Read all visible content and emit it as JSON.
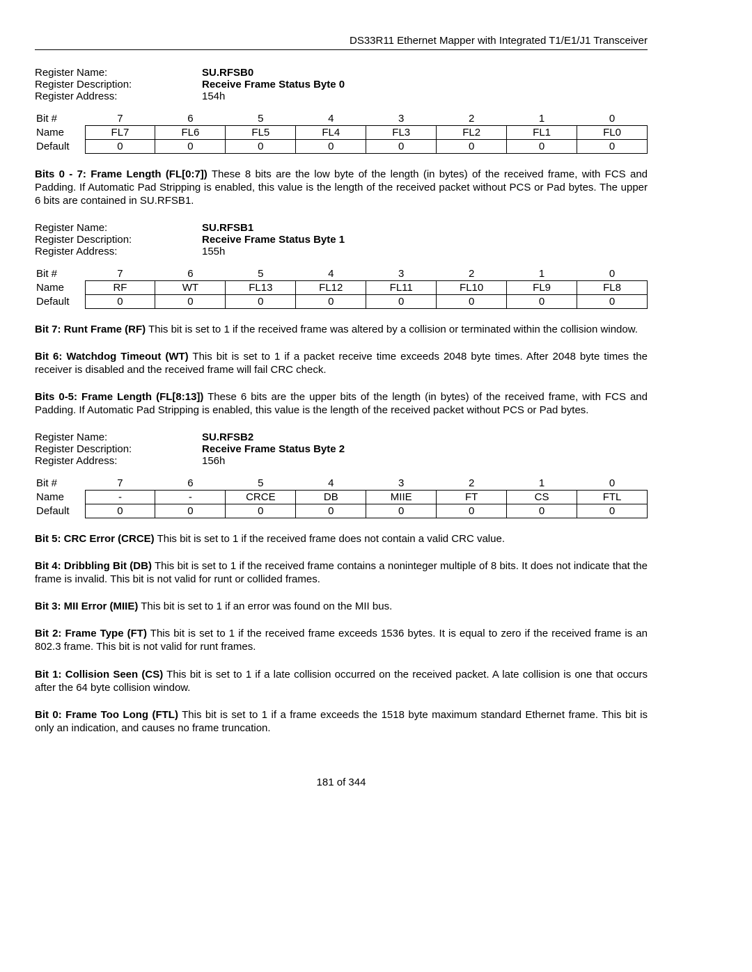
{
  "header": "DS33R11 Ethernet Mapper with Integrated T1/E1/J1 Transceiver",
  "registers": [
    {
      "name_label": "Register Name:",
      "name_value": "SU.RFSB0",
      "desc_label": "Register Description:",
      "desc_value": "Receive Frame Status Byte 0",
      "addr_label": "Register Address:",
      "addr_value": "154h",
      "bit_header": "Bit #",
      "name_row": "Name",
      "default_row": "Default",
      "bits": [
        "7",
        "6",
        "5",
        "4",
        "3",
        "2",
        "1",
        "0"
      ],
      "names": [
        "FL7",
        "FL6",
        "FL5",
        "FL4",
        "FL3",
        "FL2",
        "FL1",
        "FL0"
      ],
      "defaults": [
        "0",
        "0",
        "0",
        "0",
        "0",
        "0",
        "0",
        "0"
      ],
      "paragraphs": [
        {
          "lead": "Bits 0 - 7: Frame Length (FL[0:7])",
          "body": " These 8 bits are the low byte of the length (in bytes) of the received frame, with FCS and Padding. If Automatic Pad Stripping is enabled, this value is the length of the received packet without PCS or Pad bytes. The upper 6 bits are contained in SU.RFSB1."
        }
      ]
    },
    {
      "name_label": "Register Name:",
      "name_value": "SU.RFSB1",
      "desc_label": "Register Description:",
      "desc_value": "Receive Frame Status Byte 1",
      "addr_label": "Register Address:",
      "addr_value": "155h",
      "bit_header": "Bit #",
      "name_row": "Name",
      "default_row": "Default",
      "bits": [
        "7",
        "6",
        "5",
        "4",
        "3",
        "2",
        "1",
        "0"
      ],
      "names": [
        "RF",
        "WT",
        "FL13",
        "FL12",
        "FL11",
        "FL10",
        "FL9",
        "FL8"
      ],
      "defaults": [
        "0",
        "0",
        "0",
        "0",
        "0",
        "0",
        "0",
        "0"
      ],
      "paragraphs": [
        {
          "lead": "Bit 7: Runt Frame (RF)",
          "body": " This bit is set to 1 if the received frame was altered by a collision or terminated within the collision window."
        },
        {
          "lead": "Bit 6: Watchdog Timeout (WT)",
          "body": " This bit is set to 1 if a packet receive time exceeds 2048 byte times. After 2048 byte times the receiver is disabled and the received frame will fail CRC check."
        },
        {
          "lead": "Bits 0-5: Frame Length (FL[8:13])",
          "body": " These 6 bits are the upper bits of the length (in bytes) of the received frame, with FCS and Padding. If Automatic Pad Stripping is enabled, this value is the length of the received packet without PCS or Pad bytes."
        }
      ]
    },
    {
      "name_label": "Register Name:",
      "name_value": "SU.RFSB2",
      "desc_label": "Register Description:",
      "desc_value": "Receive Frame Status Byte 2",
      "addr_label": "Register Address:",
      "addr_value": "156h",
      "bit_header": "Bit #",
      "name_row": "Name",
      "default_row": "Default",
      "bits": [
        "7",
        "6",
        "5",
        "4",
        "3",
        "2",
        "1",
        "0"
      ],
      "names": [
        "-",
        "-",
        "CRCE",
        "DB",
        "MIIE",
        "FT",
        "CS",
        "FTL"
      ],
      "defaults": [
        "0",
        "0",
        "0",
        "0",
        "0",
        "0",
        "0",
        "0"
      ],
      "paragraphs": [
        {
          "lead": "Bit 5: CRC Error (CRCE)",
          "body": " This bit is set to 1 if the received frame does not contain a valid CRC value."
        },
        {
          "lead": "Bit 4: Dribbling Bit (DB)",
          "body": " This bit is set to 1 if the received frame contains a noninteger multiple of 8 bits. It does not indicate that the frame is invalid. This bit is not valid for runt or collided frames."
        },
        {
          "lead": "Bit 3: MII Error (MIIE)",
          "body": " This bit is set to 1 if an error was found on the MII bus."
        },
        {
          "lead": "Bit 2: Frame Type (FT)",
          "body": " This bit is set to 1 if the received frame exceeds 1536 bytes. It is equal to zero if the received frame is an 802.3 frame. This bit is not valid for runt frames."
        },
        {
          "lead": "Bit 1: Collision Seen (CS)",
          "body": " This bit is set to 1 if a late collision occurred on the received packet. A late collision is one that occurs after the 64 byte collision window."
        },
        {
          "lead": "Bit 0: Frame Too Long (FTL)",
          "body": " This bit is set to 1 if a frame exceeds the 1518 byte maximum standard Ethernet frame. This bit is only an indication, and causes no frame truncation."
        }
      ]
    }
  ],
  "footer": "181 of 344"
}
